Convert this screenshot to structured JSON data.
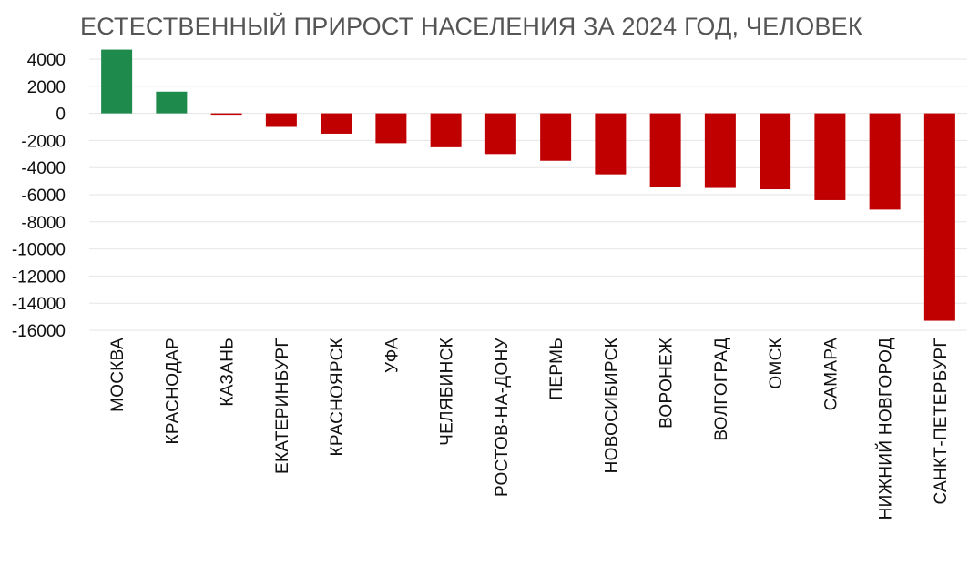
{
  "chart_data": {
    "type": "bar",
    "title": "ЕСТЕСТВЕННЫЙ ПРИРОСТ НАСЕЛЕНИЯ  ЗА 2024 ГОД, ЧЕЛОВЕК",
    "xlabel": "",
    "ylabel": "",
    "ylim": [
      -16000,
      4000
    ],
    "yticks": [
      4000,
      2000,
      0,
      -2000,
      -4000,
      -6000,
      -8000,
      -10000,
      -12000,
      -14000,
      -16000
    ],
    "grid": true,
    "categories": [
      "МОСКВА",
      "КРАСНОДАР",
      "КАЗАНЬ",
      "ЕКАТЕРИНБУРГ",
      "КРАСНОЯРСК",
      "УФА",
      "ЧЕЛЯБИНСК",
      "РОСТОВ-НА-ДОНУ",
      "ПЕРМЬ",
      "НОВОСИБИРСК",
      "ВОРОНЕЖ",
      "ВОЛГОГРАД",
      "ОМСК",
      "САМАРА",
      "НИЖНИЙ НОВГОРОД",
      "САНКТ-ПЕТЕРБУРГ"
    ],
    "values": [
      4700,
      1600,
      -100,
      -1000,
      -1500,
      -2200,
      -2500,
      -3000,
      -3500,
      -4500,
      -5400,
      -5500,
      -5600,
      -6400,
      -7100,
      -15300
    ],
    "colors": {
      "positive": "#1e8a4c",
      "negative": "#c00000",
      "grid": "#e6e6e6"
    }
  }
}
